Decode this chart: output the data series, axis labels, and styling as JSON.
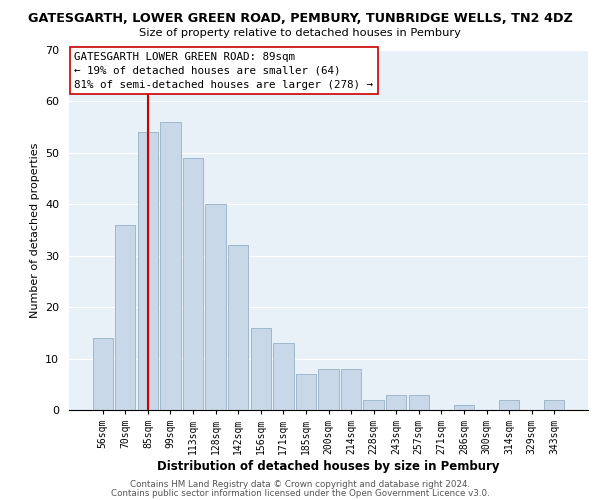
{
  "title": "GATESGARTH, LOWER GREEN ROAD, PEMBURY, TUNBRIDGE WELLS, TN2 4DZ",
  "subtitle": "Size of property relative to detached houses in Pembury",
  "xlabel": "Distribution of detached houses by size in Pembury",
  "ylabel": "Number of detached properties",
  "bar_labels": [
    "56sqm",
    "70sqm",
    "85sqm",
    "99sqm",
    "113sqm",
    "128sqm",
    "142sqm",
    "156sqm",
    "171sqm",
    "185sqm",
    "200sqm",
    "214sqm",
    "228sqm",
    "243sqm",
    "257sqm",
    "271sqm",
    "286sqm",
    "300sqm",
    "314sqm",
    "329sqm",
    "343sqm"
  ],
  "bar_values": [
    14,
    36,
    54,
    56,
    49,
    40,
    32,
    16,
    13,
    7,
    8,
    8,
    2,
    3,
    3,
    0,
    1,
    0,
    2,
    0,
    2
  ],
  "bar_color": "#c8d8e8",
  "bar_edge_color": "#a0b8cc",
  "vline_x": 2,
  "vline_color": "#cc0000",
  "ylim": [
    0,
    70
  ],
  "annotation_line1": "GATESGARTH LOWER GREEN ROAD: 89sqm",
  "annotation_line2": "← 19% of detached houses are smaller (64)",
  "annotation_line3": "81% of semi-detached houses are larger (278) →",
  "annotation_box_color": "#ffffff",
  "annotation_box_edge": "#cc0000",
  "footer1": "Contains HM Land Registry data © Crown copyright and database right 2024.",
  "footer2": "Contains public sector information licensed under the Open Government Licence v3.0.",
  "background_color": "#ffffff",
  "plot_bg_color": "#e8f0f8"
}
